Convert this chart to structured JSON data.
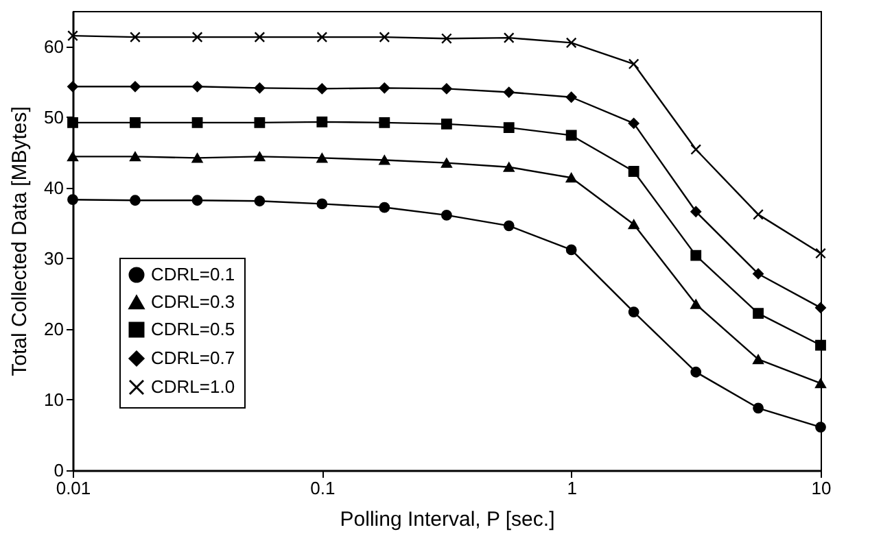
{
  "chart_data": {
    "type": "line",
    "xlabel": "Polling Interval, P [sec.]",
    "ylabel": "Total Collected Data [MBytes]",
    "x": [
      0.01,
      0.0178,
      0.0316,
      0.0562,
      0.1,
      0.178,
      0.316,
      0.562,
      1,
      1.78,
      3.16,
      5.62,
      10
    ],
    "xlim": [
      0.01,
      10
    ],
    "xticks": [
      0.01,
      0.1,
      1,
      10
    ],
    "log": "x",
    "ylim": [
      0,
      65
    ],
    "yticks": [
      0,
      10,
      20,
      30,
      40,
      50,
      60
    ],
    "grid": false,
    "legend": "left",
    "series": [
      {
        "name": "CDRL=0.1",
        "color": "#000000",
        "marker": "circle",
        "values": [
          38.3,
          38.2,
          38.2,
          38.1,
          37.7,
          37.2,
          36.1,
          34.6,
          31.2,
          22.4,
          13.9,
          8.8,
          6.1
        ]
      },
      {
        "name": "CDRL=0.3",
        "color": "#000000",
        "marker": "triangle",
        "values": [
          44.4,
          44.4,
          44.2,
          44.4,
          44.2,
          43.9,
          43.5,
          42.9,
          41.4,
          34.8,
          23.5,
          15.7,
          12.3
        ]
      },
      {
        "name": "CDRL=0.5",
        "color": "#000000",
        "marker": "square",
        "values": [
          49.2,
          49.2,
          49.2,
          49.2,
          49.3,
          49.2,
          49.0,
          48.5,
          47.4,
          42.3,
          30.4,
          22.2,
          17.7
        ]
      },
      {
        "name": "CDRL=0.7",
        "color": "#000000",
        "marker": "diamond",
        "values": [
          54.3,
          54.3,
          54.3,
          54.1,
          54.0,
          54.1,
          54.0,
          53.5,
          52.8,
          49.1,
          36.6,
          27.8,
          23.0
        ]
      },
      {
        "name": "CDRL=1.0",
        "color": "#000000",
        "marker": "cross",
        "values": [
          61.5,
          61.3,
          61.3,
          61.3,
          61.3,
          61.3,
          61.1,
          61.2,
          60.5,
          57.5,
          45.4,
          36.2,
          30.7
        ]
      }
    ]
  }
}
